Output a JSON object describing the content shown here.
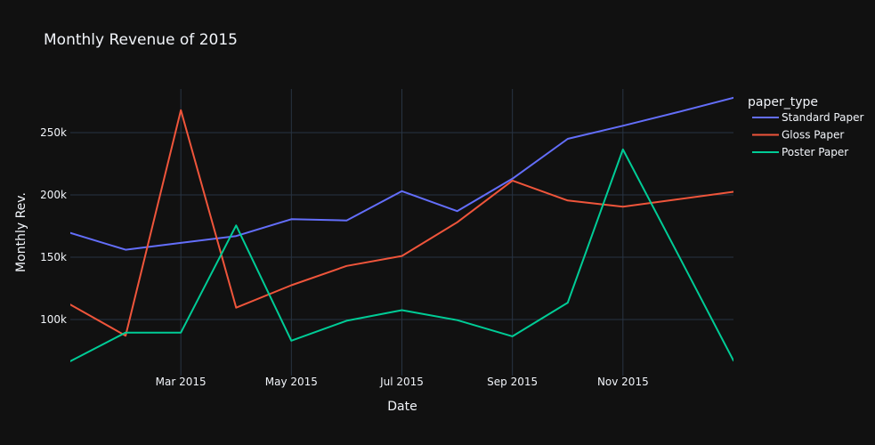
{
  "chart_data": {
    "type": "line",
    "title": "Monthly Revenue of 2015",
    "xlabel": "Date",
    "ylabel": "Monthly Rev.",
    "legend_title": "paper_type",
    "legend_position": "right",
    "grid": true,
    "x": [
      "2015-01",
      "2015-02",
      "2015-03",
      "2015-04",
      "2015-05",
      "2015-06",
      "2015-07",
      "2015-08",
      "2015-09",
      "2015-10",
      "2015-11",
      "2015-12",
      "2016-01"
    ],
    "x_ticks": [
      {
        "date": "2015-03",
        "label": "Mar 2015"
      },
      {
        "date": "2015-05",
        "label": "May 2015"
      },
      {
        "date": "2015-07",
        "label": "Jul 2015"
      },
      {
        "date": "2015-09",
        "label": "Sep 2015"
      },
      {
        "date": "2015-11",
        "label": "Nov 2015"
      }
    ],
    "y_ticks": [
      {
        "value": 100000,
        "label": "100k"
      },
      {
        "value": 150000,
        "label": "150k"
      },
      {
        "value": 200000,
        "label": "200k"
      },
      {
        "value": 250000,
        "label": "250k"
      }
    ],
    "xlim": [
      "2015-01",
      "2016-01"
    ],
    "ylim": [
      55000,
      285000
    ],
    "series": [
      {
        "name": "Standard Paper",
        "color": "#636efa",
        "values": [
          169500,
          156000,
          161500,
          167000,
          180500,
          179500,
          203000,
          187000,
          213000,
          245000,
          255500,
          266500,
          278000
        ]
      },
      {
        "name": "Gloss Paper",
        "color": "#ef553b",
        "values": [
          112000,
          87000,
          268000,
          109500,
          127500,
          143000,
          151000,
          178000,
          211500,
          195500,
          190500,
          196500,
          202500
        ]
      },
      {
        "name": "Poster Paper",
        "color": "#00cc96",
        "values": [
          66500,
          89500,
          89500,
          175500,
          83000,
          99000,
          107500,
          99500,
          86500,
          113500,
          236500,
          152000,
          67000
        ]
      }
    ]
  }
}
